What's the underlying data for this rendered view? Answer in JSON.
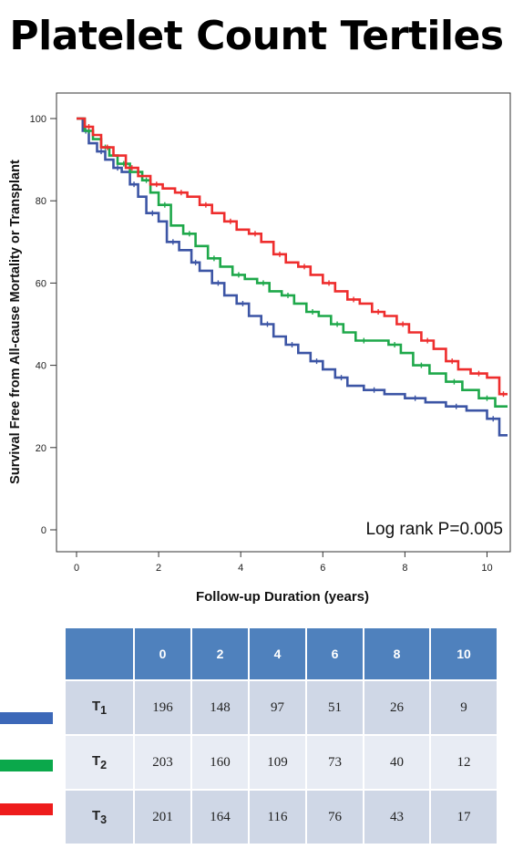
{
  "page": {
    "title": "Platelet Count Tertiles"
  },
  "chart_data": {
    "type": "line",
    "subtype": "kaplan-meier step curve",
    "xlabel": "Follow-up Duration (years)",
    "ylabel": "Survival Free from All-cause Mortality or Transplant",
    "xlim": [
      0,
      10.5
    ],
    "ylim": [
      0,
      100
    ],
    "xticks": [
      0,
      2,
      4,
      6,
      8,
      10
    ],
    "yticks": [
      0,
      20,
      40,
      60,
      80,
      100
    ],
    "grid": false,
    "annotation": "Log rank P=0.005",
    "series": [
      {
        "color": "#3c55a5",
        "points": [
          [
            0,
            100
          ],
          [
            0.15,
            97
          ],
          [
            0.3,
            94
          ],
          [
            0.5,
            92
          ],
          [
            0.7,
            90
          ],
          [
            0.9,
            88
          ],
          [
            1.1,
            87
          ],
          [
            1.3,
            84
          ],
          [
            1.5,
            81
          ],
          [
            1.7,
            77
          ],
          [
            2.0,
            75
          ],
          [
            2.2,
            70
          ],
          [
            2.5,
            68
          ],
          [
            2.8,
            65
          ],
          [
            3.0,
            63
          ],
          [
            3.3,
            60
          ],
          [
            3.6,
            57
          ],
          [
            3.9,
            55
          ],
          [
            4.2,
            52
          ],
          [
            4.5,
            50
          ],
          [
            4.8,
            47
          ],
          [
            5.1,
            45
          ],
          [
            5.4,
            43
          ],
          [
            5.7,
            41
          ],
          [
            6.0,
            39
          ],
          [
            6.3,
            37
          ],
          [
            6.6,
            35
          ],
          [
            7.0,
            34
          ],
          [
            7.5,
            33
          ],
          [
            8.0,
            32
          ],
          [
            8.5,
            31
          ],
          [
            9.0,
            30
          ],
          [
            9.5,
            29
          ],
          [
            10.0,
            27
          ],
          [
            10.3,
            23
          ],
          [
            10.5,
            23
          ]
        ]
      },
      {
        "color": "#1ea84a",
        "points": [
          [
            0,
            100
          ],
          [
            0.2,
            97
          ],
          [
            0.4,
            95
          ],
          [
            0.6,
            93
          ],
          [
            0.8,
            91
          ],
          [
            1.0,
            89
          ],
          [
            1.3,
            87
          ],
          [
            1.6,
            85
          ],
          [
            1.8,
            82
          ],
          [
            2.0,
            79
          ],
          [
            2.3,
            74
          ],
          [
            2.6,
            72
          ],
          [
            2.9,
            69
          ],
          [
            3.2,
            66
          ],
          [
            3.5,
            64
          ],
          [
            3.8,
            62
          ],
          [
            4.1,
            61
          ],
          [
            4.4,
            60
          ],
          [
            4.7,
            58
          ],
          [
            5.0,
            57
          ],
          [
            5.3,
            55
          ],
          [
            5.6,
            53
          ],
          [
            5.9,
            52
          ],
          [
            6.2,
            50
          ],
          [
            6.5,
            48
          ],
          [
            6.8,
            46
          ],
          [
            7.2,
            46
          ],
          [
            7.6,
            45
          ],
          [
            7.9,
            43
          ],
          [
            8.2,
            40
          ],
          [
            8.6,
            38
          ],
          [
            9.0,
            36
          ],
          [
            9.4,
            34
          ],
          [
            9.8,
            32
          ],
          [
            10.2,
            30
          ],
          [
            10.5,
            30
          ]
        ]
      },
      {
        "color": "#ee2d2d",
        "points": [
          [
            0,
            100
          ],
          [
            0.2,
            98
          ],
          [
            0.4,
            96
          ],
          [
            0.6,
            93
          ],
          [
            0.9,
            91
          ],
          [
            1.2,
            88
          ],
          [
            1.5,
            86
          ],
          [
            1.8,
            84
          ],
          [
            2.1,
            83
          ],
          [
            2.4,
            82
          ],
          [
            2.7,
            81
          ],
          [
            3.0,
            79
          ],
          [
            3.3,
            77
          ],
          [
            3.6,
            75
          ],
          [
            3.9,
            73
          ],
          [
            4.2,
            72
          ],
          [
            4.5,
            70
          ],
          [
            4.8,
            67
          ],
          [
            5.1,
            65
          ],
          [
            5.4,
            64
          ],
          [
            5.7,
            62
          ],
          [
            6.0,
            60
          ],
          [
            6.3,
            58
          ],
          [
            6.6,
            56
          ],
          [
            6.9,
            55
          ],
          [
            7.2,
            53
          ],
          [
            7.5,
            52
          ],
          [
            7.8,
            50
          ],
          [
            8.1,
            48
          ],
          [
            8.4,
            46
          ],
          [
            8.7,
            44
          ],
          [
            9.0,
            41
          ],
          [
            9.3,
            39
          ],
          [
            9.6,
            38
          ],
          [
            10.0,
            37
          ],
          [
            10.3,
            33
          ],
          [
            10.5,
            33
          ]
        ]
      }
    ]
  },
  "risk_table": {
    "header": [
      "",
      "0",
      "2",
      "4",
      "6",
      "8",
      "10"
    ],
    "rows": [
      {
        "label_main": "T",
        "label_sub": "1",
        "color": "#3c68b8",
        "values": [
          "196",
          "148",
          "97",
          "51",
          "26",
          "9"
        ]
      },
      {
        "label_main": "T",
        "label_sub": "2",
        "color": "#0ba84b",
        "values": [
          "203",
          "160",
          "109",
          "73",
          "40",
          "12"
        ]
      },
      {
        "label_main": "T",
        "label_sub": "3",
        "color": "#ee1c1c",
        "values": [
          "201",
          "164",
          "116",
          "76",
          "43",
          "17"
        ]
      }
    ]
  }
}
